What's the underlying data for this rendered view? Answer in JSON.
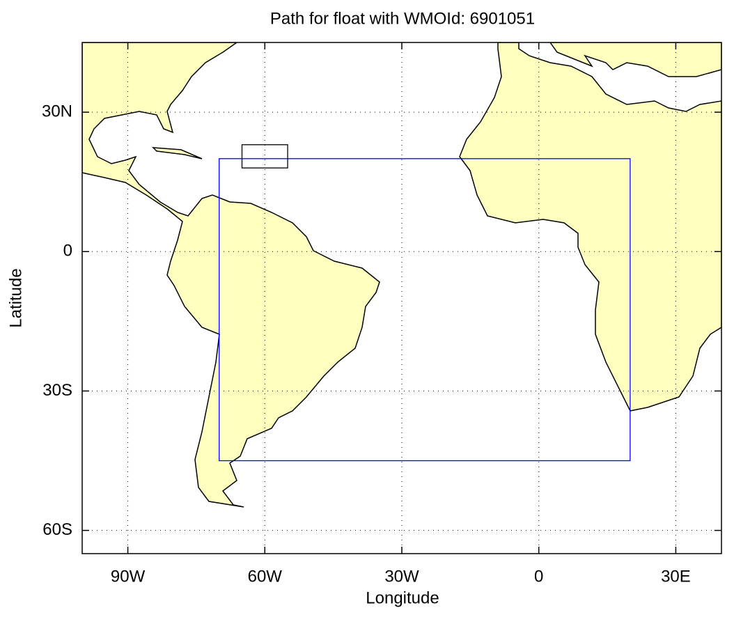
{
  "chart_data": {
    "type": "map",
    "title": "Path for float with WMOId: 6901051",
    "xlabel": "Longitude",
    "ylabel": "Latitude",
    "xlim": [
      -100,
      40
    ],
    "ylim": [
      -65,
      45
    ],
    "xticks": [
      {
        "value": -90,
        "label": "90W"
      },
      {
        "value": -60,
        "label": "60W"
      },
      {
        "value": -30,
        "label": "30W"
      },
      0,
      {
        "value": 30,
        "label": "30E"
      }
    ],
    "yticks": [
      {
        "value": 30,
        "label": "30N"
      },
      0,
      {
        "value": -30,
        "label": "30S"
      },
      {
        "value": -60,
        "label": "60S"
      }
    ],
    "grid": true,
    "land_color": "#ffffc0",
    "boxes": [
      {
        "color": "#0000ff",
        "lon": [
          -70,
          20
        ],
        "lat": [
          -45,
          20
        ]
      },
      {
        "color": "#000000",
        "lon": [
          -65,
          -55
        ],
        "lat": [
          18,
          23
        ]
      }
    ]
  }
}
